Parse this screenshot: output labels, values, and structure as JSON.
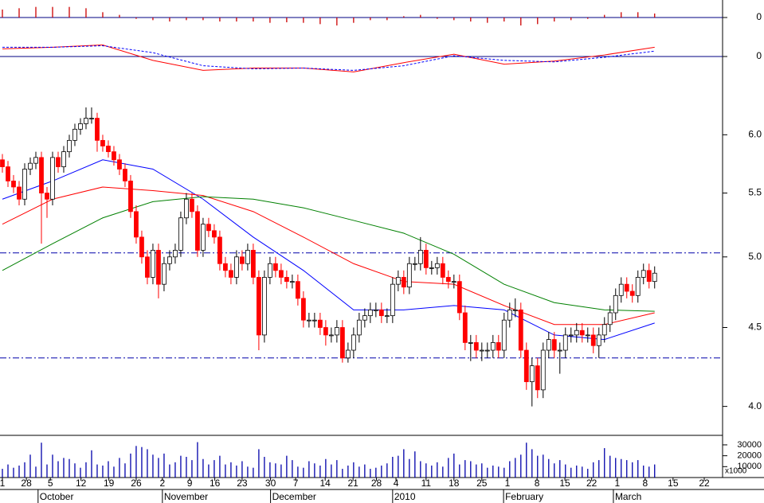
{
  "chart_data": [
    {
      "type": "bar",
      "x": [
        0,
        3,
        6,
        9,
        12,
        15,
        18,
        21,
        24,
        27,
        30,
        33,
        36,
        39,
        42,
        45,
        48,
        51,
        54,
        57,
        60,
        63,
        66,
        69,
        72,
        75,
        78,
        81,
        84,
        87,
        90,
        93,
        96,
        99,
        102,
        105,
        108,
        111,
        114,
        117
      ],
      "values": [
        0.03,
        0.035,
        0.04,
        0.04,
        0.04,
        0.035,
        0.02,
        0.01,
        -0.005,
        -0.01,
        -0.015,
        -0.01,
        -0.01,
        -0.015,
        -0.015,
        -0.015,
        -0.02,
        -0.018,
        -0.02,
        -0.025,
        -0.03,
        -0.02,
        -0.01,
        -0.01,
        0.005,
        0.01,
        -0.005,
        -0.01,
        -0.015,
        -0.02,
        -0.015,
        -0.03,
        -0.025,
        -0.015,
        -0.01,
        -0.005,
        0.01,
        0.02,
        0.02,
        0.015
      ],
      "color": "#cc0000",
      "ylim": [
        -0.06,
        0.06
      ],
      "yticks": [
        0
      ]
    },
    {
      "type": "line",
      "x": [
        0,
        9,
        18,
        27,
        36,
        45,
        54,
        63,
        72,
        81,
        90,
        99,
        108,
        117
      ],
      "series": [
        {
          "color": "#ff0000",
          "dashed": false,
          "values": [
            0.1,
            0.12,
            0.15,
            -0.05,
            -0.18,
            -0.15,
            -0.15,
            -0.2,
            -0.08,
            0.03,
            -0.1,
            -0.06,
            0.02,
            0.12
          ]
        },
        {
          "color": "#0000ff",
          "dashed": true,
          "values": [
            0.12,
            0.12,
            0.14,
            0.05,
            -0.12,
            -0.16,
            -0.15,
            -0.18,
            -0.12,
            0.01,
            -0.05,
            -0.07,
            -0.01,
            0.07
          ]
        }
      ],
      "ylim": [
        -0.3,
        0.3
      ],
      "yticks": [
        0
      ]
    },
    {
      "type": "candlestick",
      "open": [
        5.78,
        5.72,
        5.6,
        5.55,
        5.45,
        5.7,
        5.75,
        5.8,
        5.5,
        5.45,
        5.8,
        5.72,
        5.85,
        5.95,
        6.05,
        6.1,
        6.15,
        6.15,
        5.95,
        5.9,
        5.85,
        5.78,
        5.7,
        5.6,
        5.35,
        5.15,
        5.0,
        4.85,
        5.05,
        4.8,
        4.95,
        5.0,
        5.05,
        5.3,
        5.45,
        5.35,
        5.05,
        5.25,
        5.2,
        5.15,
        4.95,
        4.9,
        4.85,
        5.0,
        4.95,
        5.05,
        4.85,
        4.45,
        4.85,
        4.95,
        4.9,
        4.85,
        4.82,
        4.82,
        4.7,
        4.55,
        4.55,
        4.55,
        4.5,
        4.45,
        4.45,
        4.5,
        4.3,
        4.35,
        4.45,
        4.55,
        4.58,
        4.62,
        4.62,
        4.58,
        4.58,
        4.8,
        4.85,
        4.78,
        4.95,
        4.95,
        5.05,
        4.92,
        4.92,
        4.95,
        4.85,
        4.82,
        4.82,
        4.6,
        4.4,
        4.4,
        4.35,
        4.35,
        4.35,
        4.4,
        4.35,
        4.55,
        4.62,
        4.62,
        4.35,
        4.15,
        4.25,
        4.1,
        4.35,
        4.42,
        4.35,
        4.35,
        4.45,
        4.45,
        4.48,
        4.45,
        4.45,
        4.38,
        4.45,
        4.52,
        4.6,
        4.72,
        4.8,
        4.75,
        4.72,
        4.85,
        4.9,
        4.82
      ],
      "high": [
        5.83,
        5.77,
        5.65,
        5.6,
        5.75,
        5.8,
        5.85,
        5.85,
        5.55,
        5.85,
        5.85,
        5.9,
        6.0,
        6.1,
        6.15,
        6.25,
        6.25,
        6.2,
        6.0,
        5.95,
        5.9,
        5.83,
        5.75,
        5.65,
        5.4,
        5.2,
        5.05,
        5.1,
        5.1,
        5.0,
        5.05,
        5.1,
        5.35,
        5.5,
        5.5,
        5.4,
        5.3,
        5.3,
        5.25,
        5.2,
        5.0,
        4.95,
        5.05,
        5.05,
        5.1,
        5.1,
        4.9,
        4.9,
        5.0,
        5.0,
        4.95,
        4.9,
        4.87,
        4.87,
        4.75,
        4.6,
        4.6,
        4.6,
        4.55,
        4.5,
        4.55,
        4.55,
        4.4,
        4.5,
        4.6,
        4.63,
        4.67,
        4.67,
        4.67,
        4.63,
        4.85,
        4.9,
        4.9,
        5.0,
        5.0,
        5.15,
        5.1,
        4.97,
        5.0,
        5.0,
        4.9,
        4.87,
        4.87,
        4.65,
        4.45,
        4.45,
        4.4,
        4.4,
        4.45,
        4.45,
        4.6,
        4.67,
        4.7,
        4.67,
        4.4,
        4.3,
        4.3,
        4.4,
        4.47,
        4.47,
        4.4,
        4.5,
        4.5,
        4.53,
        4.53,
        4.5,
        4.5,
        4.5,
        4.57,
        4.65,
        4.77,
        4.85,
        4.85,
        4.8,
        4.9,
        4.95,
        4.95,
        4.93
      ],
      "low": [
        5.67,
        5.55,
        5.5,
        5.4,
        5.4,
        5.65,
        5.7,
        5.1,
        5.3,
        5.4,
        5.67,
        5.67,
        5.8,
        5.9,
        6.0,
        6.05,
        6.1,
        5.85,
        5.85,
        5.8,
        5.73,
        5.65,
        5.55,
        5.3,
        5.1,
        4.95,
        4.8,
        4.8,
        4.7,
        4.75,
        4.9,
        4.95,
        5.0,
        5.25,
        5.3,
        5.0,
        5.0,
        5.15,
        5.1,
        4.9,
        4.85,
        4.8,
        4.8,
        4.9,
        4.9,
        4.8,
        4.35,
        4.4,
        4.8,
        4.85,
        4.8,
        4.77,
        4.77,
        4.65,
        4.5,
        4.5,
        4.5,
        4.45,
        4.38,
        4.4,
        4.4,
        4.27,
        4.27,
        4.3,
        4.4,
        4.5,
        4.53,
        4.57,
        4.53,
        4.53,
        4.53,
        4.75,
        4.73,
        4.73,
        4.9,
        4.9,
        4.87,
        4.87,
        4.87,
        4.8,
        4.77,
        4.77,
        4.55,
        4.35,
        4.28,
        4.3,
        4.28,
        4.3,
        4.3,
        4.3,
        4.3,
        4.5,
        4.57,
        4.3,
        4.1,
        4.0,
        4.05,
        4.05,
        4.3,
        4.3,
        4.2,
        4.3,
        4.4,
        4.4,
        4.4,
        4.4,
        4.33,
        4.3,
        4.4,
        4.47,
        4.55,
        4.67,
        4.7,
        4.67,
        4.67,
        4.8,
        4.77,
        4.77
      ],
      "close": [
        5.72,
        5.6,
        5.55,
        5.45,
        5.7,
        5.75,
        5.8,
        5.5,
        5.45,
        5.8,
        5.72,
        5.85,
        5.95,
        6.05,
        6.1,
        6.15,
        6.15,
        5.95,
        5.9,
        5.85,
        5.78,
        5.7,
        5.6,
        5.35,
        5.15,
        5.0,
        4.85,
        5.05,
        4.8,
        4.95,
        5.0,
        5.05,
        5.3,
        5.45,
        5.35,
        5.05,
        5.25,
        5.2,
        5.15,
        4.95,
        4.9,
        4.85,
        5.0,
        4.95,
        5.05,
        4.85,
        4.45,
        4.85,
        4.95,
        4.9,
        4.85,
        4.82,
        4.82,
        4.7,
        4.55,
        4.55,
        4.55,
        4.5,
        4.45,
        4.45,
        4.5,
        4.3,
        4.35,
        4.45,
        4.55,
        4.58,
        4.62,
        4.62,
        4.58,
        4.58,
        4.8,
        4.85,
        4.78,
        4.95,
        4.95,
        5.05,
        4.92,
        4.92,
        4.95,
        4.85,
        4.82,
        4.82,
        4.6,
        4.4,
        4.4,
        4.35,
        4.35,
        4.35,
        4.4,
        4.35,
        4.55,
        4.62,
        4.62,
        4.35,
        4.15,
        4.25,
        4.1,
        4.35,
        4.42,
        4.35,
        4.35,
        4.45,
        4.45,
        4.48,
        4.45,
        4.45,
        4.38,
        4.45,
        4.52,
        4.6,
        4.72,
        4.8,
        4.75,
        4.72,
        4.85,
        4.9,
        4.82,
        4.88
      ],
      "color_up": "#ffffff",
      "color_down": "#ff0000",
      "ylim": [
        3.84,
        6.4
      ],
      "log_scale": true,
      "yticks": [
        {
          "value": 6,
          "label": "6.0"
        },
        5.5,
        {
          "value": 5,
          "label": "5.0"
        },
        4.5,
        {
          "value": 4,
          "label": "4.0"
        }
      ],
      "ma_x": [
        0,
        9,
        18,
        27,
        36,
        45,
        54,
        63,
        72,
        81,
        90,
        99,
        108,
        117
      ],
      "ma": [
        {
          "color": "#0000ff",
          "values": [
            5.45,
            5.6,
            5.78,
            5.7,
            5.45,
            5.15,
            4.9,
            4.62,
            4.62,
            4.65,
            4.62,
            4.45,
            4.42,
            4.53
          ]
        },
        {
          "color": "#ff0000",
          "values": [
            5.25,
            5.45,
            5.55,
            5.52,
            5.48,
            5.35,
            5.15,
            4.95,
            4.82,
            4.8,
            4.65,
            4.52,
            4.52,
            4.6
          ]
        },
        {
          "color": "#008000",
          "values": [
            4.9,
            5.1,
            5.3,
            5.43,
            5.47,
            5.45,
            5.38,
            5.28,
            5.18,
            5.02,
            4.8,
            4.67,
            4.62,
            4.61
          ]
        }
      ],
      "ref_lines": [
        5.03,
        4.3
      ],
      "ref_color": "#0000aa"
    },
    {
      "type": "bar",
      "values": [
        8000,
        12000,
        9000,
        11000,
        14000,
        21000,
        10000,
        32000,
        12000,
        21000,
        15000,
        18000,
        17000,
        13000,
        9000,
        14000,
        25000,
        12000,
        11000,
        15000,
        10000,
        18000,
        13000,
        22000,
        29000,
        28000,
        26000,
        21000,
        18000,
        22000,
        12000,
        14000,
        20000,
        19000,
        16000,
        32500,
        17000,
        12000,
        16000,
        20000,
        12000,
        14000,
        11000,
        15000,
        10000,
        9000,
        26000,
        19000,
        14000,
        13000,
        12000,
        20000,
        16000,
        10000,
        9000,
        15000,
        13000,
        11000,
        17000,
        12000,
        16000,
        8000,
        11000,
        14000,
        10000,
        12000,
        8000,
        9000,
        11000,
        13000,
        19000,
        20000,
        26000,
        17000,
        24000,
        15000,
        13000,
        11000,
        14000,
        10000,
        18000,
        22000,
        12000,
        16000,
        15000,
        12000,
        13000,
        9000,
        11000,
        10000,
        9000,
        15000,
        18000,
        21000,
        32000,
        26000,
        20000,
        21000,
        17000,
        13000,
        16000,
        12000,
        9000,
        11000,
        10000,
        8000,
        14000,
        16000,
        27000,
        20000,
        18000,
        17000,
        16000,
        14000,
        16000,
        11000,
        10000,
        12000
      ],
      "color": "#0000aa",
      "ylim": [
        0,
        38000
      ],
      "yticks": [
        30000,
        20000,
        10000
      ],
      "y_unit": "x1000",
      "xlim": [
        -0.43,
        128.9
      ],
      "xticks": [
        {
          "value": 0,
          "label": "1"
        },
        {
          "value": 4.3,
          "label": "28"
        },
        {
          "value": 8.6,
          "label": "5"
        },
        {
          "value": 14.1,
          "label": "12"
        },
        {
          "value": 19.1,
          "label": "19"
        },
        {
          "value": 24,
          "label": "26"
        },
        {
          "value": 28.7,
          "label": "2"
        },
        {
          "value": 33.6,
          "label": "9"
        },
        {
          "value": 38.1,
          "label": "16"
        },
        {
          "value": 43,
          "label": "23"
        },
        {
          "value": 48.1,
          "label": "30"
        },
        {
          "value": 52.6,
          "label": "7"
        },
        {
          "value": 57.9,
          "label": "14"
        },
        {
          "value": 62.9,
          "label": "21"
        },
        {
          "value": 67.1,
          "label": "28"
        },
        {
          "value": 70.6,
          "label": "4"
        },
        {
          "value": 76,
          "label": "11"
        },
        {
          "value": 81,
          "label": "18"
        },
        {
          "value": 86,
          "label": "25"
        },
        {
          "value": 90.6,
          "label": "1"
        },
        {
          "value": 95.9,
          "label": "8"
        },
        {
          "value": 100.9,
          "label": "15"
        },
        {
          "value": 105.7,
          "label": "22"
        },
        {
          "value": 110.3,
          "label": "1"
        },
        {
          "value": 115.3,
          "label": "8"
        },
        {
          "value": 120.3,
          "label": "15"
        },
        {
          "value": 125.9,
          "label": "22"
        }
      ],
      "months": [
        {
          "value": 6.4,
          "label": "October"
        },
        {
          "value": 28.7,
          "label": "November"
        },
        {
          "value": 48.1,
          "label": "December"
        },
        {
          "value": 70,
          "label": "2010"
        },
        {
          "value": 89.9,
          "label": "February"
        },
        {
          "value": 109.6,
          "label": "March"
        }
      ]
    }
  ]
}
